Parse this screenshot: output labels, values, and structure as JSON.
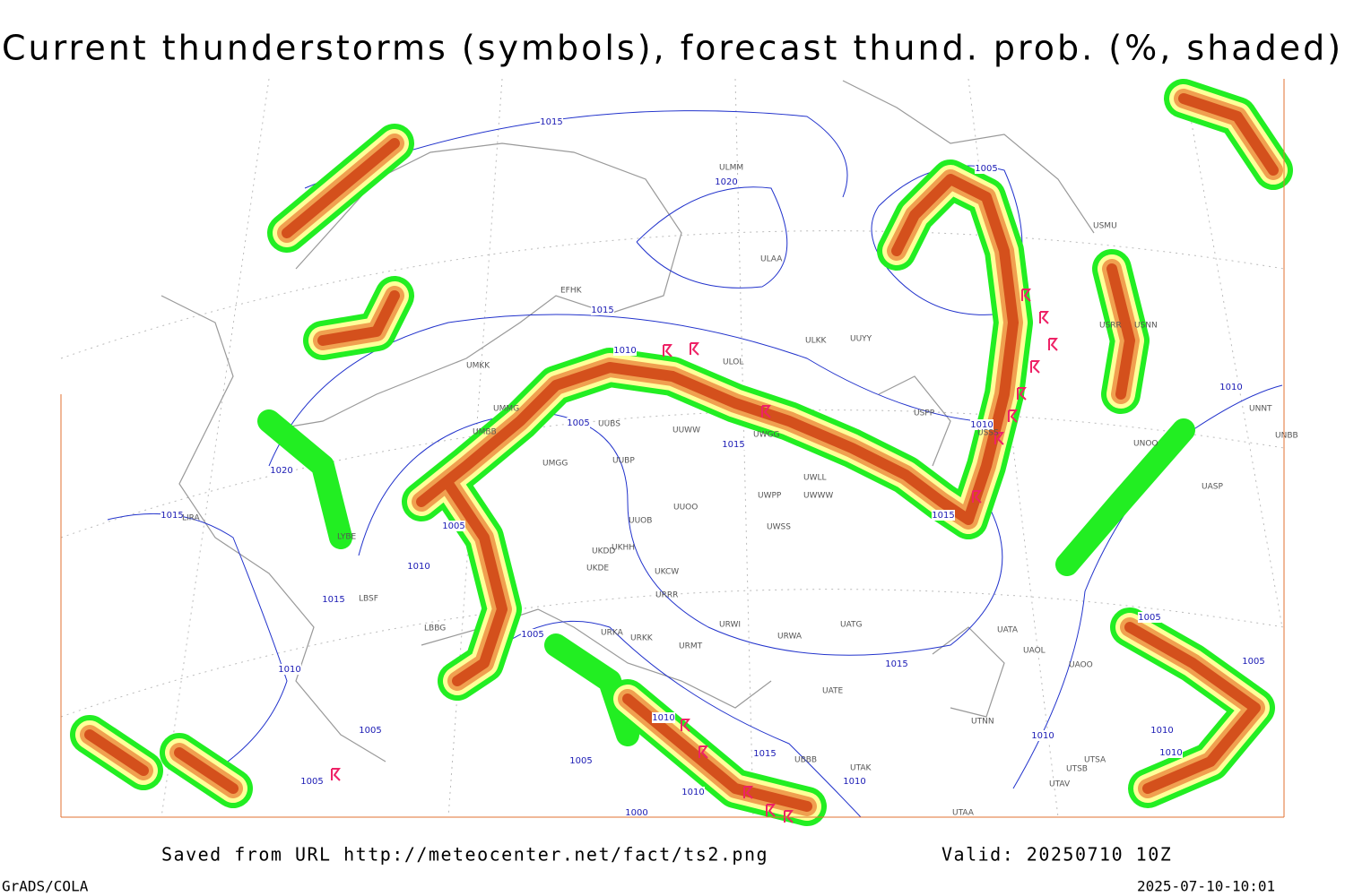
{
  "title": "Current thunderstorms (symbols), forecast thund. prob. (%, shaded)",
  "footer": {
    "source": "Saved from URL http://meteocenter.net/fact/ts2.png",
    "valid": "Valid: 20250710 10Z",
    "software": "GrADS/COLA",
    "timestamp": "2025-07-10-10:01"
  },
  "isobar_labels": [
    "1015",
    "1020",
    "1005",
    "1015",
    "1010",
    "1005",
    "1015",
    "1010",
    "1020",
    "1015",
    "1005",
    "1015",
    "1010",
    "1015",
    "1005",
    "1010",
    "1015",
    "1005",
    "1010",
    "1015",
    "1005",
    "1010",
    "1005",
    "1010",
    "1000",
    "1010",
    "1005",
    "1005",
    "1010",
    "1010",
    "1010"
  ],
  "stations": [
    "ULMM",
    "ULAA",
    "EFHK",
    "ULKK",
    "UUYY",
    "ULOL",
    "UMKK",
    "UUBS",
    "UUWW",
    "UWGG",
    "UMMG",
    "UMBB",
    "UMGG",
    "UUBP",
    "UWPP",
    "UWWW",
    "UWLL",
    "UUOO",
    "UUOB",
    "UWSS",
    "UKHH",
    "UKDD",
    "UKDE",
    "UKCW",
    "URRR",
    "URWI",
    "UATG",
    "URWA",
    "UATA",
    "UAOL",
    "UAOO",
    "UATE",
    "UTNN",
    "UTAK",
    "UTAA",
    "USPP",
    "USMU",
    "USSS",
    "USRR",
    "USNN",
    "UNNT",
    "UNBB",
    "UNOO",
    "UASP",
    "URKA",
    "URKK",
    "URMT",
    "UTSA",
    "UTSB",
    "UTAV",
    "UBBB",
    "LBBG",
    "LBSF",
    "LYBE",
    "LIRA"
  ]
}
